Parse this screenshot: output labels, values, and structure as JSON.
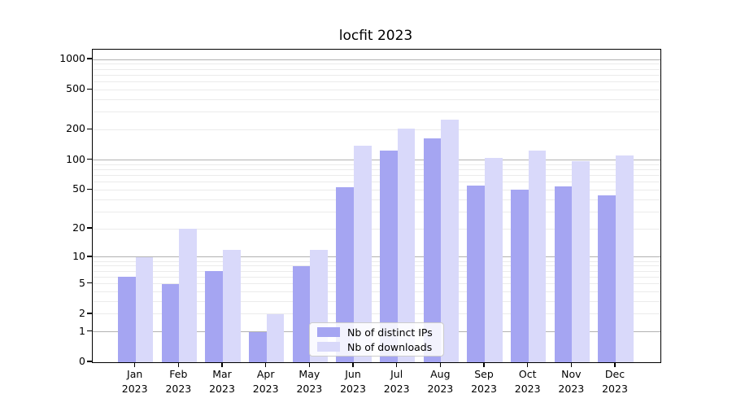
{
  "figure": {
    "title": "locfit 2023",
    "background_color": "#ffffff"
  },
  "chart_data": {
    "type": "bar",
    "title": "locfit 2023",
    "xlabel": "",
    "ylabel": "",
    "categories": [
      "Jan 2023",
      "Feb 2023",
      "Mar 2023",
      "Apr 2023",
      "May 2023",
      "Jun 2023",
      "Jul 2023",
      "Aug 2023",
      "Sep 2023",
      "Oct 2023",
      "Nov 2023",
      "Dec 2023"
    ],
    "x_tick_months": [
      "Jan",
      "Feb",
      "Mar",
      "Apr",
      "May",
      "Jun",
      "Jul",
      "Aug",
      "Sep",
      "Oct",
      "Nov",
      "Dec"
    ],
    "x_tick_year": "2023",
    "series": [
      {
        "name": "Nb of distinct IPs",
        "color": "#a5a5f2",
        "values": [
          6,
          5,
          7,
          1,
          8,
          53,
          125,
          165,
          55,
          50,
          54,
          44
        ]
      },
      {
        "name": "Nb of downloads",
        "color": "#d9d9fa",
        "values": [
          10,
          20,
          12,
          2,
          12,
          140,
          205,
          250,
          105,
          125,
          98,
          110
        ]
      }
    ],
    "y_scale": "log1p",
    "ylim": [
      0,
      1250
    ],
    "y_ticks": [
      0,
      1,
      2,
      5,
      10,
      20,
      50,
      100,
      200,
      500,
      1000
    ],
    "grid_major": [
      1,
      10,
      100,
      1000
    ],
    "grid_minor": [
      2,
      3,
      4,
      5,
      6,
      7,
      8,
      9,
      20,
      30,
      40,
      50,
      60,
      70,
      80,
      90,
      200,
      300,
      400,
      500,
      600,
      700,
      800,
      900
    ],
    "grid": "on",
    "legend_position": "lower center",
    "legend_labels": [
      "Nb of distinct IPs",
      "Nb of downloads"
    ]
  }
}
